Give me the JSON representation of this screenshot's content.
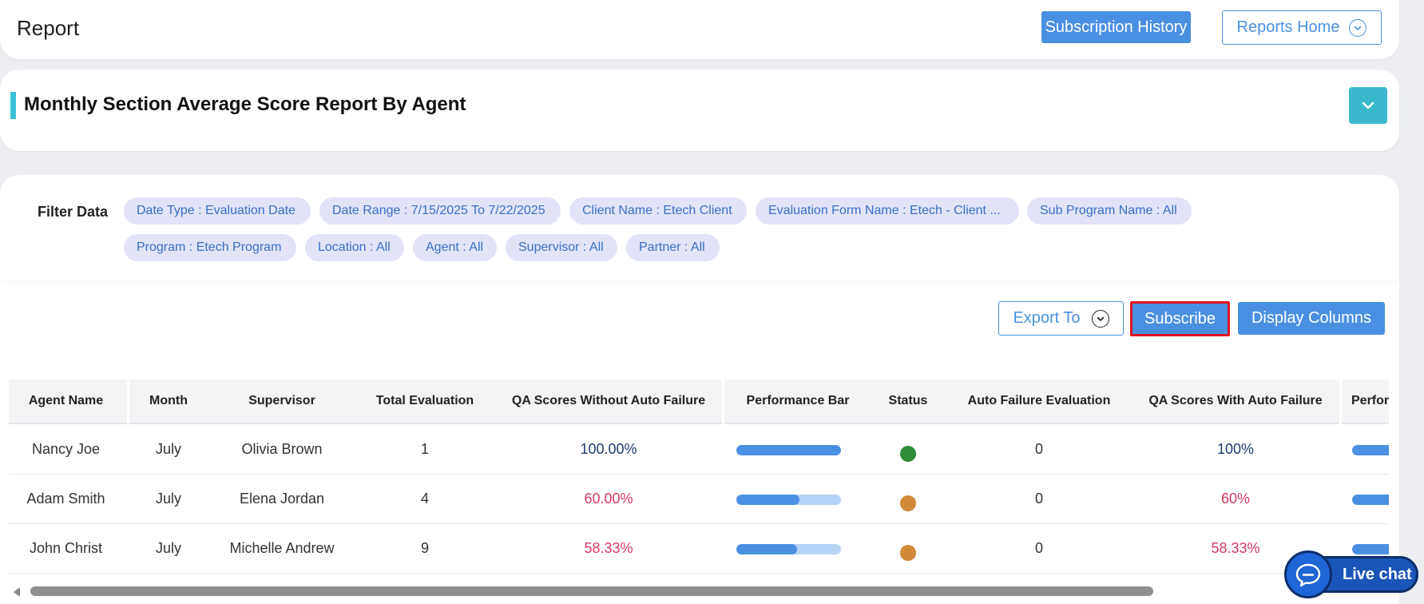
{
  "header": {
    "title": "Report",
    "subscription_history_label": "Subscription History",
    "reports_home_label": "Reports Home"
  },
  "section": {
    "title": "Monthly Section Average Score Report By Agent"
  },
  "filters": {
    "label": "Filter Data",
    "chips": [
      "Date Type : Evaluation Date",
      "Date Range : 7/15/2025 To 7/22/2025",
      "Client Name : Etech Client",
      "Evaluation Form Name : Etech - Client ...",
      "Sub Program Name : All",
      "Program : Etech Program",
      "Location : All",
      "Agent : All",
      "Supervisor : All",
      "Partner : All"
    ]
  },
  "toolbar": {
    "export_label": "Export To",
    "subscribe_label": "Subscribe",
    "display_columns_label": "Display Columns"
  },
  "table": {
    "headers": [
      "Agent Name",
      "Month",
      "Supervisor",
      "Total Evaluation",
      "QA Scores Without Auto Failure",
      "Performance Bar",
      "Status",
      "Auto Failure Evaluation",
      "QA Scores With Auto Failure",
      "Perfor"
    ],
    "rows": [
      {
        "agent": "Nancy Joe",
        "month": "July",
        "supervisor": "Olivia Brown",
        "total": "1",
        "qa_without": "100.00%",
        "perf": 1.0,
        "status_color": "#2e8b3a",
        "auto_fail": "0",
        "qa_with": "100%",
        "low": false
      },
      {
        "agent": "Adam Smith",
        "month": "July",
        "supervisor": "Elena Jordan",
        "total": "4",
        "qa_without": "60.00%",
        "perf": 0.6,
        "status_color": "#d08a3a",
        "auto_fail": "0",
        "qa_with": "60%",
        "low": true
      },
      {
        "agent": "John Christ",
        "month": "July",
        "supervisor": "Michelle Andrew",
        "total": "9",
        "qa_without": "58.33%",
        "perf": 0.5833,
        "status_color": "#d08a3a",
        "auto_fail": "0",
        "qa_with": "58.33%",
        "low": true
      }
    ]
  },
  "livechat": {
    "label": "Live chat"
  },
  "colors": {
    "primary": "#4a90e2",
    "accent": "#39c1d6",
    "chip_bg": "#e2e3f7",
    "chip_text": "#3a6fc6",
    "highlight_border": "#e0141e"
  }
}
